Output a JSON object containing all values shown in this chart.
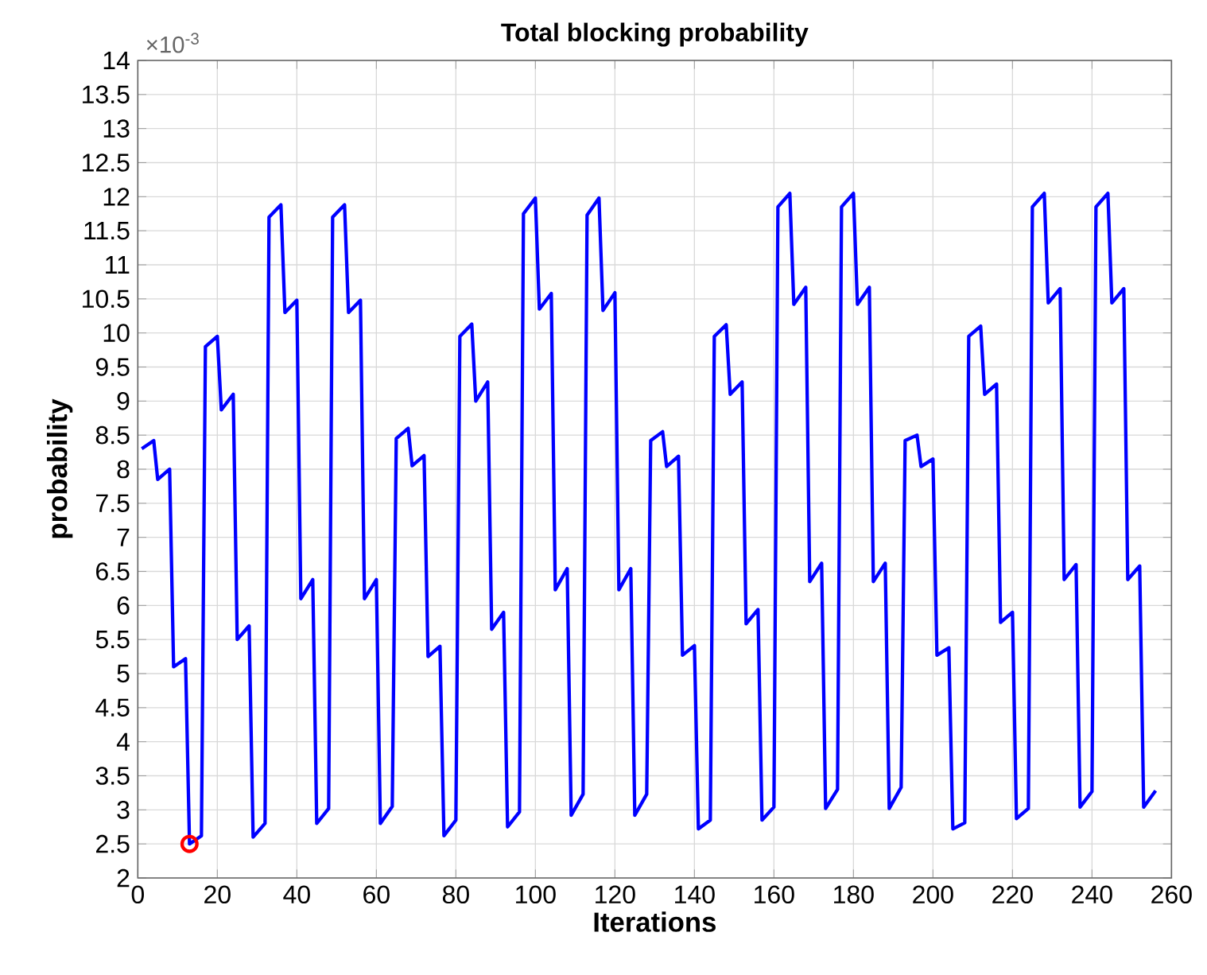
{
  "chart_data": {
    "type": "line",
    "title": "Total blocking probability",
    "xlabel": "Iterations",
    "ylabel": "probability",
    "annotations": [
      "×10$^{-3}$"
    ],
    "xlim": [
      0,
      260
    ],
    "xticks": [
      0,
      20,
      40,
      60,
      80,
      100,
      120,
      140,
      160,
      180,
      200,
      220,
      240,
      260
    ],
    "ylim": [
      2,
      14
    ],
    "yticks": [
      2,
      2.5,
      3,
      3.5,
      4,
      4.5,
      5,
      5.5,
      6,
      6.5,
      7,
      7.5,
      8,
      8.5,
      9,
      9.5,
      10,
      10.5,
      11,
      11.5,
      12,
      12.5,
      13,
      13.5,
      14
    ],
    "grid": true,
    "series": [
      {
        "color": "#0000ff",
        "x": [
          1,
          4,
          5,
          8,
          9,
          12,
          13,
          16,
          17,
          20,
          21,
          24,
          25,
          28,
          29,
          32,
          33,
          36,
          37,
          40,
          41,
          44,
          45,
          48,
          49,
          52,
          53,
          56,
          57,
          60,
          61,
          64,
          65,
          68,
          69,
          72,
          73,
          76,
          77,
          80,
          81,
          84,
          85,
          88,
          89,
          92,
          93,
          96,
          97,
          100,
          101,
          104,
          105,
          108,
          109,
          112,
          113,
          116,
          117,
          120,
          121,
          124,
          125,
          128,
          129,
          132,
          133,
          136,
          137,
          140,
          141,
          144,
          145,
          148,
          149,
          152,
          153,
          156,
          157,
          160,
          161,
          164,
          165,
          168,
          169,
          172,
          173,
          176,
          177,
          180,
          181,
          184,
          185,
          188,
          189,
          192,
          193,
          196,
          197,
          200,
          201,
          204,
          205,
          208,
          209,
          212,
          213,
          216,
          217,
          220,
          221,
          224,
          225,
          228,
          229,
          232,
          233,
          236,
          237,
          240,
          241,
          244,
          245,
          248,
          249,
          252,
          253,
          256
        ],
        "values": [
          8.3,
          8.42,
          7.85,
          8.0,
          5.1,
          5.22,
          2.5,
          2.62,
          9.8,
          9.95,
          8.87,
          9.1,
          5.5,
          5.7,
          2.6,
          2.8,
          11.7,
          11.88,
          10.3,
          10.48,
          6.1,
          6.38,
          2.8,
          3.02,
          11.7,
          11.88,
          10.3,
          10.48,
          6.1,
          6.38,
          2.8,
          3.05,
          8.45,
          8.6,
          8.05,
          8.2,
          5.25,
          5.4,
          2.62,
          2.85,
          9.95,
          10.13,
          9.0,
          9.28,
          5.65,
          5.9,
          2.75,
          2.97,
          11.75,
          11.98,
          10.35,
          10.58,
          6.23,
          6.54,
          2.92,
          3.23,
          11.73,
          11.98,
          10.33,
          10.59,
          6.23,
          6.54,
          2.92,
          3.23,
          8.42,
          8.55,
          8.04,
          8.19,
          5.27,
          5.41,
          2.72,
          2.85,
          9.95,
          10.12,
          9.1,
          9.28,
          5.73,
          5.94,
          2.85,
          3.04,
          11.85,
          12.05,
          10.42,
          10.67,
          6.35,
          6.62,
          3.02,
          3.3,
          11.85,
          12.05,
          10.42,
          10.67,
          6.35,
          6.62,
          3.02,
          3.33,
          8.42,
          8.5,
          8.04,
          8.15,
          5.27,
          5.38,
          2.72,
          2.81,
          9.95,
          10.1,
          9.1,
          9.25,
          5.75,
          5.9,
          2.87,
          3.02,
          11.85,
          12.05,
          10.44,
          10.65,
          6.38,
          6.6,
          3.04,
          3.27,
          11.85,
          12.05,
          10.44,
          10.65,
          6.38,
          6.58,
          3.04,
          3.28
        ]
      },
      {
        "type": "scatter",
        "marker": "circle",
        "color": "#ff0000",
        "x": [
          13
        ],
        "values": [
          2.5
        ]
      }
    ]
  }
}
